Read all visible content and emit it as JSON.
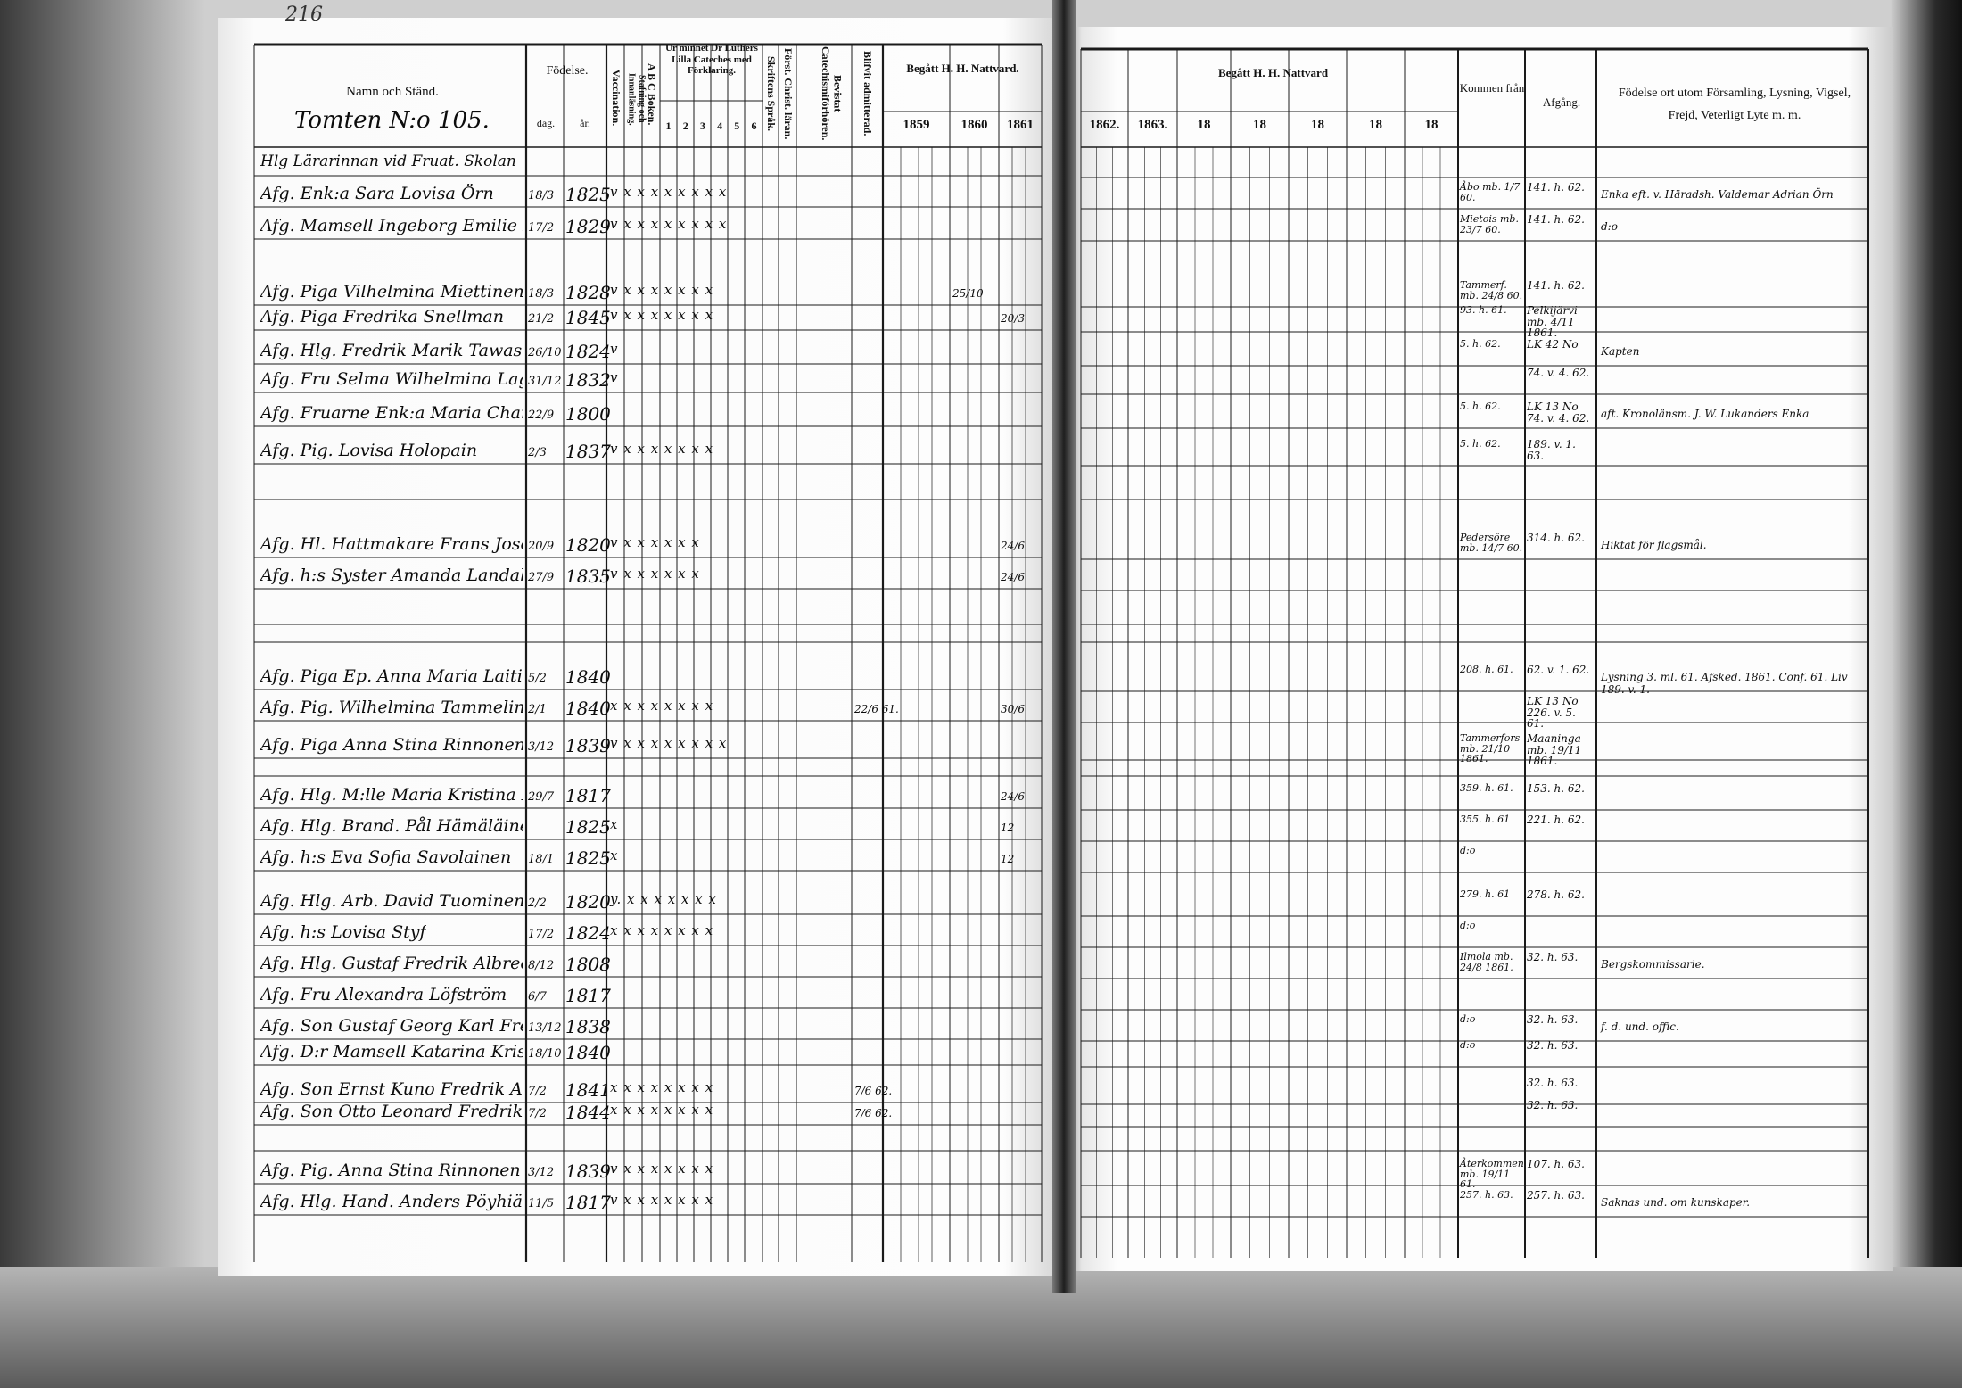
{
  "page_number": "216",
  "left_header": {
    "name_column": "Namn och Ständ.",
    "household": "Tomten N:o 105.",
    "birth": "Födelse.",
    "birth_day": "dag.",
    "birth_year": "år.",
    "vaccination": "Vaccination.",
    "spelling": "Stafning och Innanläsning.",
    "abc": "A B C Boken.",
    "catechism": "Ur minnet Dr Luthers Lilla Cateches med Förklaring.",
    "catechism_parts": [
      "1",
      "2",
      "3",
      "4",
      "5",
      "6"
    ],
    "scripture": "Skriftens Språk.",
    "christian_doctrine": "Först. Christ. läran.",
    "catechism_exam": "Bevistat Catechismiförhören.",
    "admitted": "Blifvit admitterad.",
    "communion": "Begått H. H. Nattvard.",
    "communion_years": [
      "1859",
      "1860",
      "1861"
    ]
  },
  "right_header": {
    "communion": "Begått H. H. Nattvard",
    "communion_years": [
      "1862.",
      "1863.",
      "18",
      "18",
      "18",
      "18",
      "18"
    ],
    "arrived_from": "Kommen från",
    "departure": "Afgång.",
    "remarks": "Födelse ort utom Församling, Lysning, Vigsel, Frejd, Veterligt Lyte m. m."
  },
  "rows": [
    {
      "name": "Hlg Lärarinnan vid Fruat. Skolan",
      "day": "",
      "year": "",
      "marks": "",
      "from": "",
      "departure": "",
      "remark": ""
    },
    {
      "name": "Afg. Enk:a Sara Lovisa Örn",
      "day": "18/3",
      "year": "1825",
      "marks": "v x x x x x x x x",
      "from": "Åbo mb. 1/7 60.",
      "departure": "141. h. 62.",
      "remark": "Enka eft. v. Häradsh. Valdemar Adrian Örn"
    },
    {
      "name": "Afg. Mamsell Ingeborg Emilie Lov. Kräft. Procopé",
      "day": "17/2",
      "year": "1829",
      "marks": "v x x x x x x x x",
      "from": "Mietois mb. 23/7 60.",
      "departure": "141. h. 62.",
      "remark": "d:o"
    },
    {
      "name": "Afg. Piga Vilhelmina Miettinen",
      "day": "18/3",
      "year": "1828",
      "marks": "v x x x x x x x",
      "from": "Tammerf. mb. 24/8 60.",
      "departure": "141. h. 62.",
      "remark": "",
      "communion_1860": "25/10"
    },
    {
      "name": "Afg. Piga Fredrika Snellman",
      "day": "21/2",
      "year": "1845",
      "marks": "v x x x x x x x",
      "from": "93. h. 61.",
      "departure": "Pelkijärvi mb. 4/11 1861.",
      "remark": "",
      "communion_1861": "20/3"
    },
    {
      "name": "Afg. Hlg. Fredrik Marik Tawaststjerna",
      "day": "26/10",
      "year": "1824",
      "marks": "v",
      "from": "5. h. 62.",
      "departure": "LK 42 No",
      "remark": "Kapten"
    },
    {
      "name": "Afg. Fru Selma Wilhelmina Lagander",
      "day": "31/12",
      "year": "1832",
      "marks": "v",
      "from": "",
      "departure": "74. v. 4. 62.",
      "remark": ""
    },
    {
      "name": "Afg. Fruarne Enk:a Maria Charlotta Blidberg",
      "day": "22/9",
      "year": "1800",
      "marks": "",
      "from": "5. h. 62.",
      "departure": "LK 13 No 74. v. 4. 62.",
      "remark": "aft. Kronolänsm. J. W. Lukanders Enka"
    },
    {
      "name": "Afg. Pig. Lovisa Holopain",
      "day": "2/3",
      "year": "1837",
      "marks": "v x x x x x x x",
      "from": "5. h. 62.",
      "departure": "189. v. 1. 63.",
      "remark": ""
    },
    {
      "name": "Afg. Hl. Hattmakare Frans Josef Bertmann",
      "day": "20/9",
      "year": "1820",
      "marks": "v x x x x x x",
      "from": "Pedersöre mb. 14/7 60.",
      "departure": "314. h. 62.",
      "remark": "Hiktat för flagsmål.",
      "communion_1861": "24/6"
    },
    {
      "name": "Afg. h:s Syster Amanda Landahl",
      "day": "27/9",
      "year": "1835",
      "marks": "v x x x x x x",
      "from": "",
      "departure": "",
      "remark": "",
      "communion_1861": "24/6"
    },
    {
      "name": "Afg. Piga Ep. Anna Maria Laitinen",
      "day": "5/2",
      "year": "1840",
      "marks": "",
      "from": "208. h. 61.",
      "departure": "62. v. 1. 62.",
      "remark": "Lysning 3. ml. 61. Afsked. 1861. Conf. 61. Liv 189. v. 1."
    },
    {
      "name": "Afg. Pig. Wilhelmina Tammelin",
      "day": "2/1",
      "year": "1840",
      "marks": "x x x x x x x x",
      "from": "",
      "departure": "LK 13 No 226. v. 5. 61.",
      "remark": "",
      "admitted": "22/6 61.",
      "communion_1861": "30/6"
    },
    {
      "name": "Afg. Piga Anna Stina Rinnonen",
      "day": "3/12",
      "year": "1839",
      "marks": "v x x x x x x x x",
      "from": "Tammerfors mb. 21/10 1861.",
      "departure": "Maaninga mb. 19/11 1861.",
      "remark": ""
    },
    {
      "name": "Afg. Hlg. M:lle Maria Kristina Monthén",
      "day": "29/7",
      "year": "1817",
      "marks": "",
      "from": "359. h. 61.",
      "departure": "153. h. 62.",
      "remark": "",
      "communion_1861": "24/6"
    },
    {
      "name": "Afg. Hlg. Brand. Pål Hämäläinen",
      "day": "",
      "year": "1825",
      "marks": "x",
      "from": "355. h. 61",
      "departure": "221. h. 62.",
      "remark": "",
      "communion_1861": "12"
    },
    {
      "name": "Afg. h:s Eva Sofia Savolainen",
      "day": "18/1",
      "year": "1825",
      "marks": "x",
      "from": "d:o",
      "departure": "",
      "remark": "",
      "communion_1861": "12"
    },
    {
      "name": "Afg. Hlg. Arb. David Tuominen",
      "day": "2/2",
      "year": "1820",
      "marks": "y. x x x x x x x",
      "from": "279. h. 61",
      "departure": "278. h. 62.",
      "remark": ""
    },
    {
      "name": "Afg. h:s Lovisa Styf",
      "day": "17/2",
      "year": "1824",
      "marks": "x x x x x x x x",
      "from": "d:o",
      "departure": "",
      "remark": ""
    },
    {
      "name": "Afg. Hlg. Gustaf Fredrik Albrecht",
      "day": "8/12",
      "year": "1808",
      "marks": "",
      "from": "Ilmola mb. 24/8 1861.",
      "departure": "32. h. 63.",
      "remark": "Bergskommissarie."
    },
    {
      "name": "Afg. Fru Alexandra Löfström",
      "day": "6/7",
      "year": "1817",
      "marks": "",
      "from": "",
      "departure": "",
      "remark": ""
    },
    {
      "name": "Afg. Son Gustaf Georg Karl Fred. Albrecht",
      "day": "13/12",
      "year": "1838",
      "marks": "",
      "from": "d:o",
      "departure": "32. h. 63.",
      "remark": "f. d. und. offic."
    },
    {
      "name": "Afg. D:r Mamsell Katarina Kristina Fredrika Albrecht",
      "day": "18/10",
      "year": "1840",
      "marks": "",
      "from": "d:o",
      "departure": "32. h. 63.",
      "remark": ""
    },
    {
      "name": "Afg. Son Ernst Kuno Fredrik Albrecht",
      "day": "7/2",
      "year": "1841",
      "marks": "x x x x x x x x",
      "from": "",
      "departure": "32. h. 63.",
      "remark": "",
      "admitted": "7/6 62."
    },
    {
      "name": "Afg. Son Otto Leonard Fredrik Albrecht",
      "day": "7/2",
      "year": "1844",
      "marks": "x x x x x x x x",
      "from": "",
      "departure": "32. h. 63.",
      "remark": "",
      "admitted": "7/6 62."
    },
    {
      "name": "Afg. Pig. Anna Stina Rinnonen",
      "day": "3/12",
      "year": "1839",
      "marks": "v x x x x x x x",
      "from": "Återkommen mb. 19/11 61.",
      "departure": "107. h. 63.",
      "remark": ""
    },
    {
      "name": "Afg. Hlg. Hand. Anders Pöyhiä",
      "day": "11/5",
      "year": "1817",
      "marks": "v x x x x x x x",
      "from": "257. h. 63.",
      "departure": "257. h. 63.",
      "remark": "Saknas und. om kunskaper."
    }
  ]
}
